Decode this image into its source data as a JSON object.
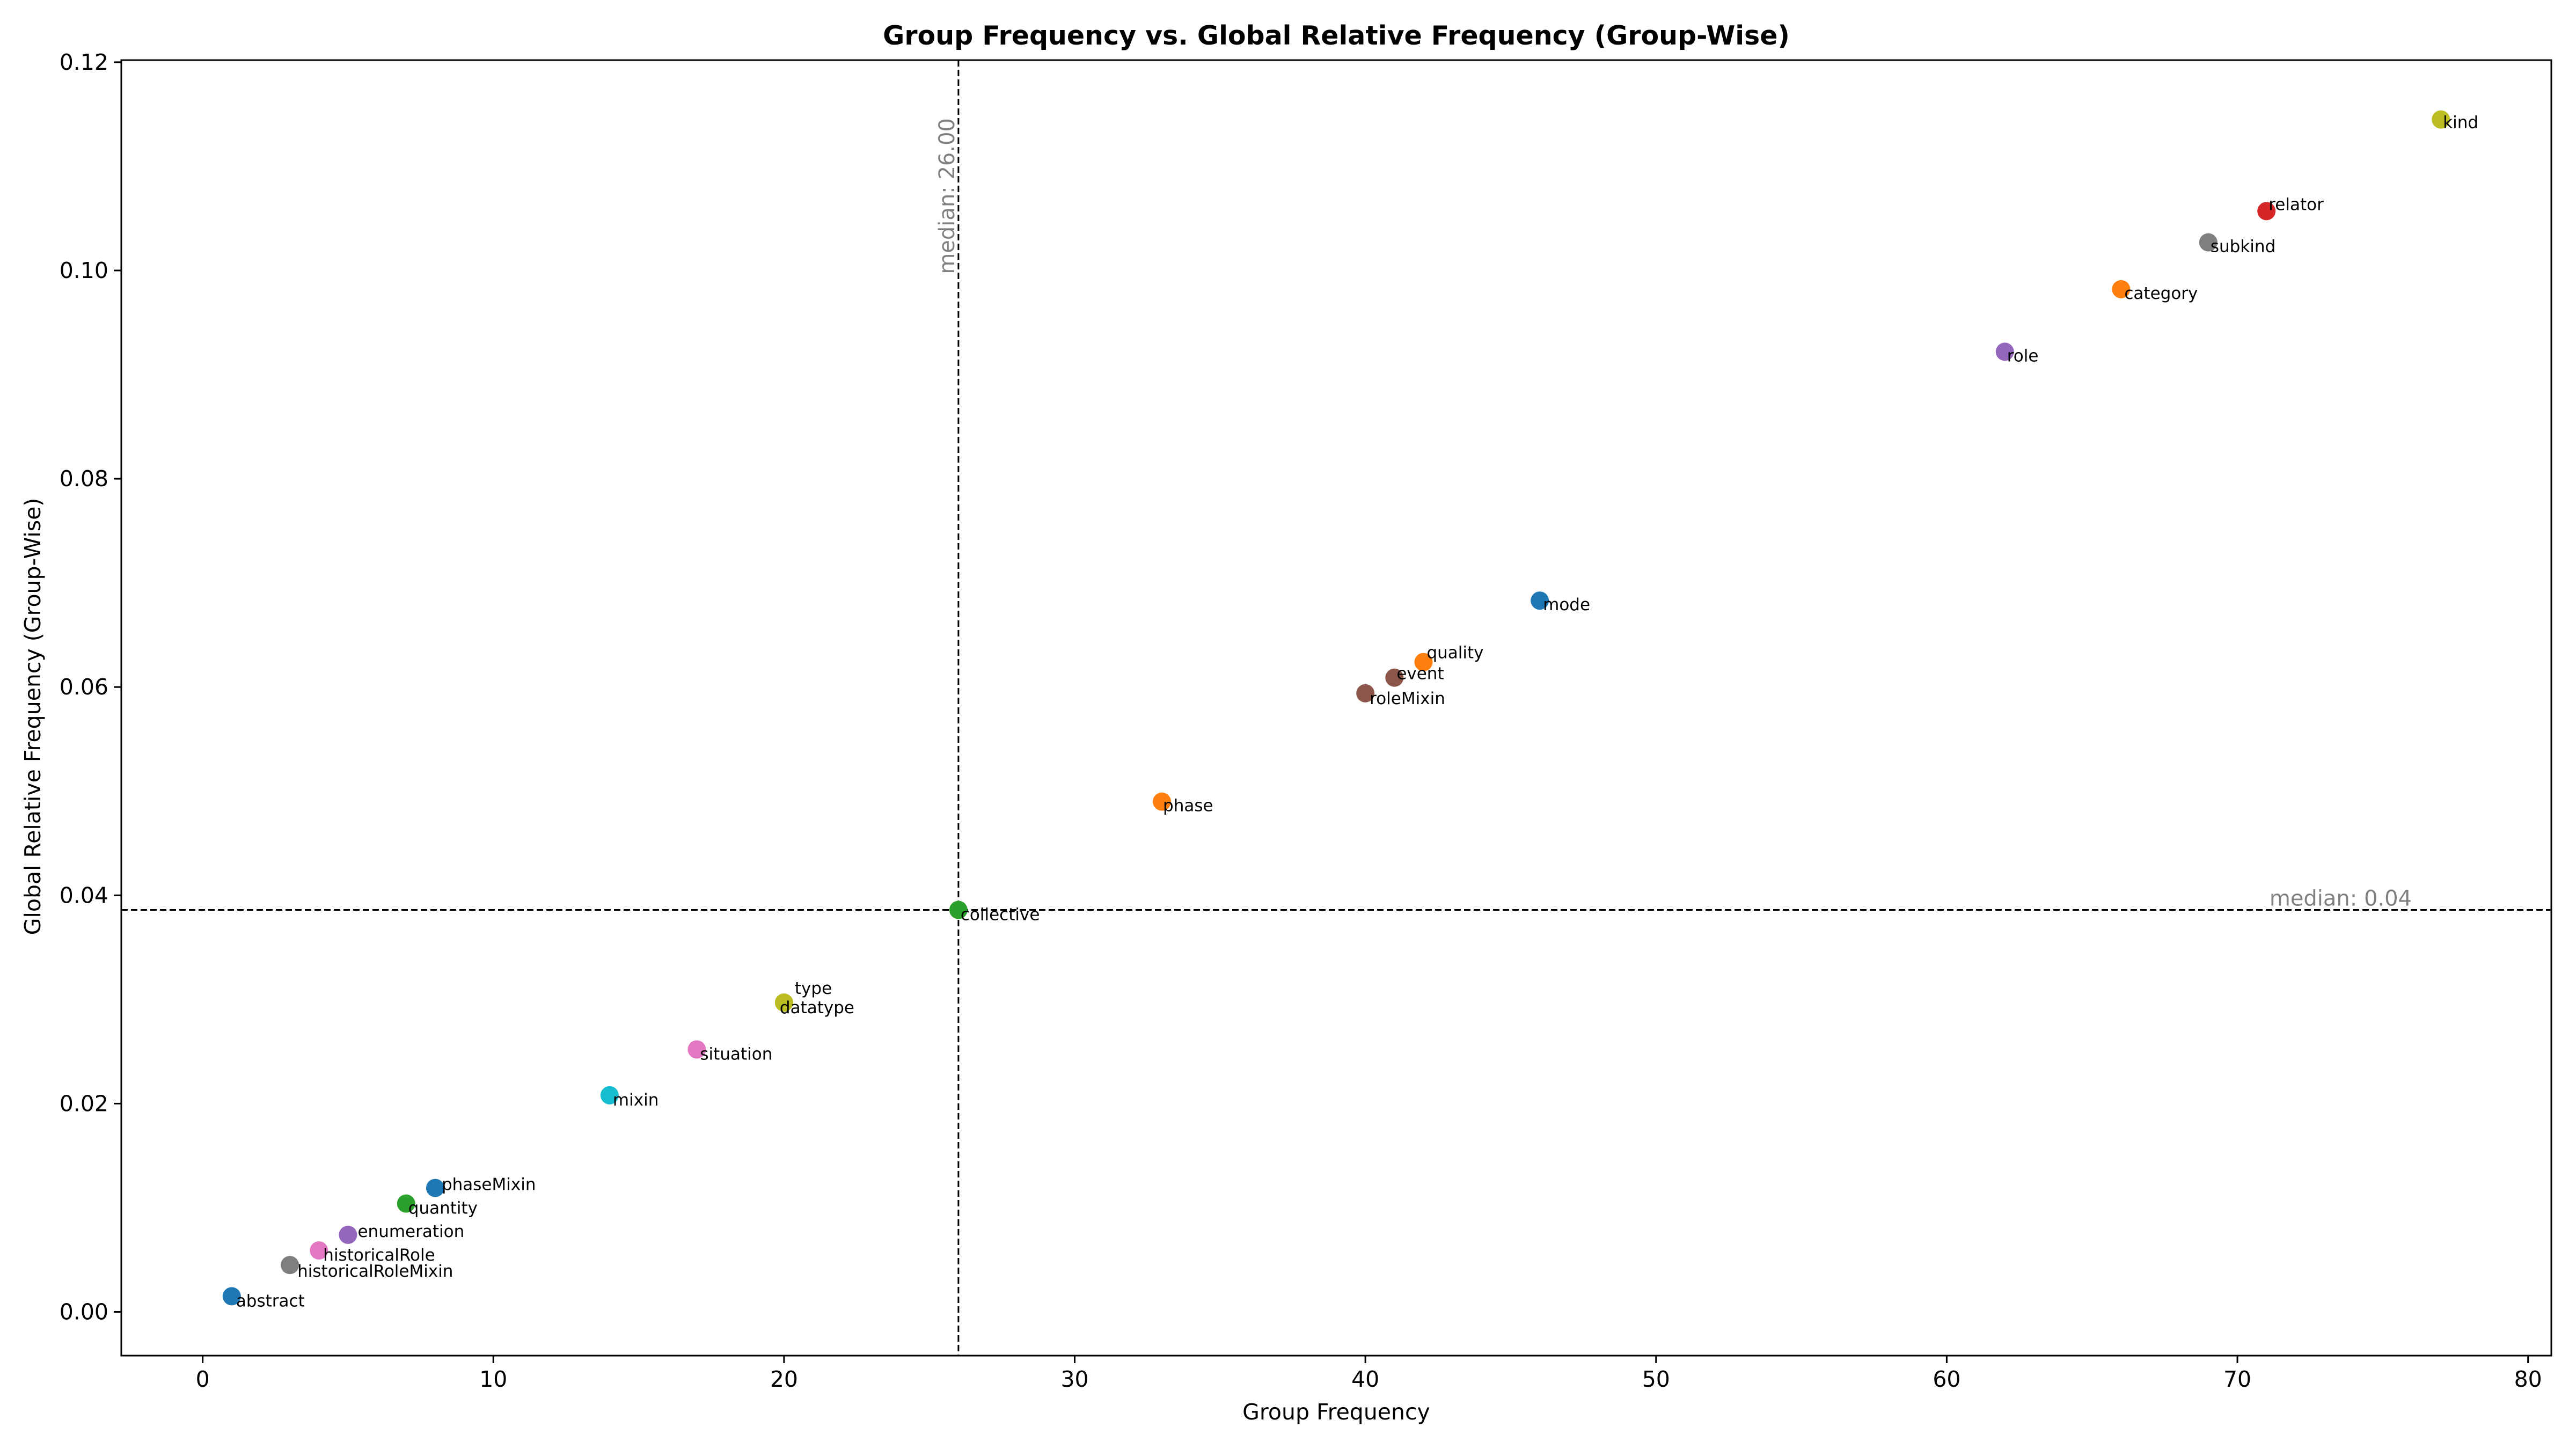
{
  "chart_data": {
    "type": "scatter",
    "title": "Group Frequency vs. Global Relative Frequency (Group-Wise)",
    "xlabel": "Group Frequency",
    "ylabel": "Global Relative Frequency (Group-Wise)",
    "xlim": [
      -2.8,
      80.8
    ],
    "ylim": [
      -0.0042,
      0.1202
    ],
    "xticks": [
      0,
      10,
      20,
      30,
      40,
      50,
      60,
      70,
      80
    ],
    "xtick_labels": [
      "0",
      "10",
      "20",
      "30",
      "40",
      "50",
      "60",
      "70",
      "80"
    ],
    "yticks": [
      0.0,
      0.02,
      0.04,
      0.06,
      0.08,
      0.1,
      0.12
    ],
    "ytick_labels": [
      "0.00",
      "0.02",
      "0.04",
      "0.06",
      "0.08",
      "0.10",
      "0.12"
    ],
    "grid": false,
    "legend": "none",
    "median_x": {
      "value": 26.0,
      "label": "median: 26.00"
    },
    "median_y": {
      "value": 0.0386,
      "label": "median: 0.04"
    },
    "points": [
      {
        "label": "kind",
        "x": 77,
        "y": 0.1145,
        "color": "#bcbd22"
      },
      {
        "label": "relator",
        "x": 71,
        "y": 0.1057,
        "color": "#d62728"
      },
      {
        "label": "subkind",
        "x": 69,
        "y": 0.1027,
        "color": "#7f7f7f"
      },
      {
        "label": "category",
        "x": 66,
        "y": 0.0982,
        "color": "#ff7f0e"
      },
      {
        "label": "role",
        "x": 62,
        "y": 0.0922,
        "color": "#9467bd"
      },
      {
        "label": "mode",
        "x": 46,
        "y": 0.0683,
        "color": "#1f77b4"
      },
      {
        "label": "quality",
        "x": 42,
        "y": 0.0624,
        "color": "#ff7f0e"
      },
      {
        "label": "event",
        "x": 41,
        "y": 0.0609,
        "color": "#8c564b"
      },
      {
        "label": "roleMixin",
        "x": 40,
        "y": 0.0594,
        "color": "#8c564b"
      },
      {
        "label": "phase",
        "x": 33,
        "y": 0.049,
        "color": "#ff7f0e"
      },
      {
        "label": "collective",
        "x": 26,
        "y": 0.0386,
        "color": "#2ca02c"
      },
      {
        "label": "type",
        "x": 20,
        "y": 0.0297,
        "color": "#bcbd22"
      },
      {
        "label": "datatype",
        "x": 20,
        "y": 0.0297,
        "color": "#bcbd22"
      },
      {
        "label": "situation",
        "x": 17,
        "y": 0.0252,
        "color": "#e377c2"
      },
      {
        "label": "mixin",
        "x": 14,
        "y": 0.0208,
        "color": "#17becf"
      },
      {
        "label": "phaseMixin",
        "x": 8,
        "y": 0.0119,
        "color": "#1f77b4"
      },
      {
        "label": "quantity",
        "x": 7,
        "y": 0.0104,
        "color": "#2ca02c"
      },
      {
        "label": "enumeration",
        "x": 5,
        "y": 0.0074,
        "color": "#9467bd"
      },
      {
        "label": "historicalRole",
        "x": 4,
        "y": 0.0059,
        "color": "#e377c2"
      },
      {
        "label": "historicalRoleMixin",
        "x": 3,
        "y": 0.0045,
        "color": "#7f7f7f"
      },
      {
        "label": "abstract",
        "x": 1,
        "y": 0.0015,
        "color": "#1f77b4"
      }
    ]
  }
}
